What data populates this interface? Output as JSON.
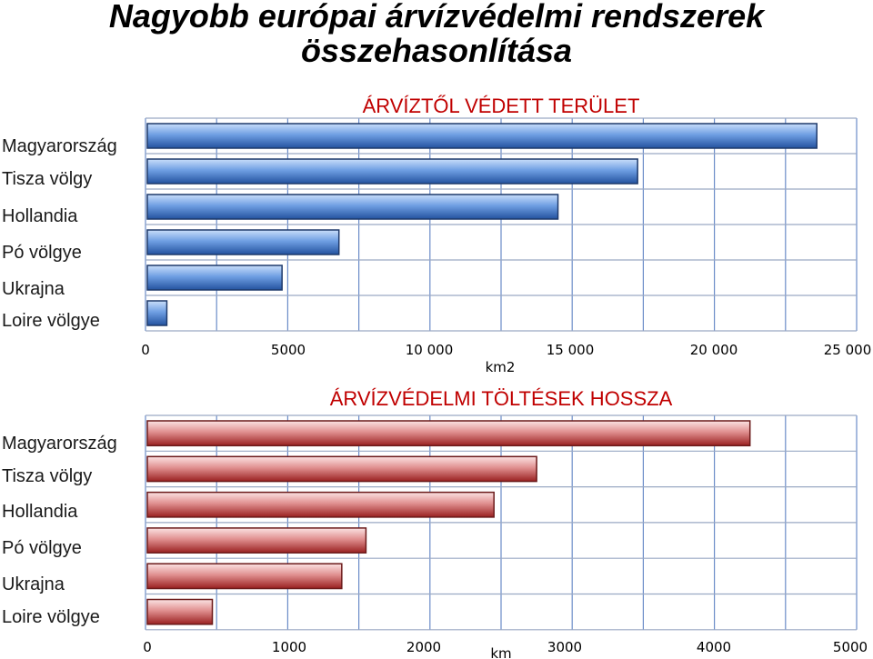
{
  "page": {
    "title_line1": "Nagyobb európai árvízvédelmi rendszerek",
    "title_line2": "összehasonlítása"
  },
  "chart_data": [
    {
      "type": "bar",
      "orientation": "horizontal",
      "title": "ÁRVÍZTŐL VÉDETT TERÜLET",
      "xlabel": "km2",
      "categories": [
        "Magyarország",
        "Tisza völgy",
        "Hollandia",
        "Pó völgye",
        "Ukrajna",
        "Loire völgye"
      ],
      "values": [
        23600,
        17300,
        14500,
        6800,
        4800,
        750
      ],
      "xlim": [
        0,
        25000
      ],
      "xticks": [
        0,
        5000,
        10000,
        15000,
        20000,
        25000
      ],
      "xtick_labels": [
        "0",
        "5000",
        "10 000",
        "15 000",
        "20 000",
        "25 000"
      ],
      "grid": true,
      "legend": "none",
      "colors": {
        "bar_light": "#9ec3f2",
        "bar_dark": "#2a5bb0",
        "bar_edge": "#1f3a6b",
        "title": "#c00000",
        "grid": "#6b8cc8"
      }
    },
    {
      "type": "bar",
      "orientation": "horizontal",
      "title": "ÁRVÍZVÉDELMI TÖLTÉSEK HOSSZA",
      "xlabel": "km",
      "categories": [
        "Magyarország",
        "Tisza völgy",
        "Hollandia",
        "Pó völgye",
        "Ukrajna",
        "Loire völgye"
      ],
      "values": [
        4250,
        2750,
        2450,
        1550,
        1380,
        470
      ],
      "xlim": [
        0,
        5000
      ],
      "xticks": [
        0,
        1000,
        2000,
        3000,
        4000,
        5000
      ],
      "xtick_labels": [
        "0",
        "1000",
        "2000",
        "3000",
        "4000",
        "5000"
      ],
      "grid": true,
      "legend": "none",
      "colors": {
        "bar_light": "#f2c4c4",
        "bar_dark": "#a82a2a",
        "bar_edge": "#6b1a1a",
        "title": "#c00000",
        "grid": "#6b8cc8"
      }
    }
  ]
}
